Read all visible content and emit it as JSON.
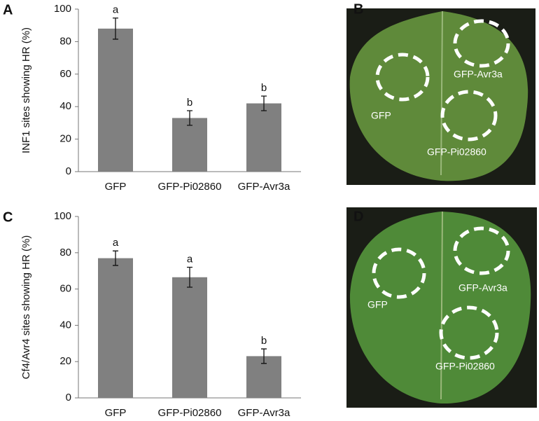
{
  "chart_data": [
    {
      "type": "bar",
      "panel_label": "A",
      "y_label": "INF1 sites showing HR (%)",
      "categories": [
        "GFP",
        "GFP-Pi02860",
        "GFP-Avr3a"
      ],
      "values": [
        88,
        33,
        42
      ],
      "errors": [
        6.5,
        4.5,
        4.5
      ],
      "value_labels": [
        "a",
        "b",
        "b"
      ],
      "color": "#808080",
      "ylim": [
        0,
        100
      ],
      "yticks": [
        0,
        20,
        40,
        60,
        80,
        100
      ]
    },
    {
      "type": "bar",
      "panel_label": "C",
      "y_label": "Cf4/Avr4 sites showing HR (%)",
      "categories": [
        "GFP",
        "GFP-Pi02860",
        "GFP-Avr3a"
      ],
      "values": [
        77,
        66.5,
        23
      ],
      "errors": [
        4,
        5.5,
        4
      ],
      "value_labels": [
        "a",
        "a",
        "b"
      ],
      "color": "#808080",
      "ylim": [
        0,
        100
      ],
      "yticks": [
        0,
        20,
        40,
        60,
        80,
        100
      ]
    }
  ],
  "photos": [
    {
      "panel_label": "B",
      "labels": [
        "GFP-Avr3a",
        "GFP",
        "GFP-Pi02860"
      ]
    },
    {
      "panel_label": "D",
      "labels": [
        "GFP-Avr3a",
        "GFP",
        "GFP-Pi02860"
      ]
    }
  ]
}
